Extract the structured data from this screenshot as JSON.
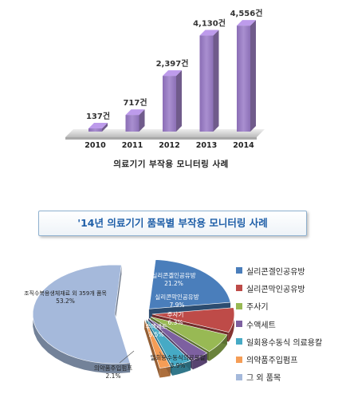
{
  "chart_data": [
    {
      "type": "bar",
      "title": "의료기기 부작용 모니터링 사례",
      "categories": [
        "2010",
        "2011",
        "2012",
        "2013",
        "2014"
      ],
      "values": [
        137,
        717,
        2397,
        4130,
        4556
      ],
      "data_labels": [
        "137건",
        "717건",
        "2,397건",
        "4,130건",
        "4,556건"
      ],
      "ylim": [
        0,
        4800
      ],
      "bar_color": "#9b7fc1",
      "grid": false
    },
    {
      "type": "pie",
      "title": "'14년 의료기기 품목별 부작용 모니터링 사례",
      "legend_position": "right",
      "slices": [
        {
          "name": "실리콘겔인공유방",
          "label": "실리콘겔인공유방",
          "percent": 21.2,
          "percent_label": "21.2%",
          "color": "#4a7ebb"
        },
        {
          "name": "실리콘막인공유방",
          "label": "실리콘막인공유방",
          "percent": 7.9,
          "percent_label": "7.9%",
          "color": "#be4b48"
        },
        {
          "name": "주사기",
          "label": "주사기",
          "percent": 6.3,
          "percent_label": "6.3%",
          "color": "#98b954"
        },
        {
          "name": "수액세트",
          "label": "수액세트",
          "percent": 3.5,
          "percent_label": "3.5%",
          "color": "#7d60a0"
        },
        {
          "name": "일회용수동식 의료용칼",
          "label": "일회용수동식의료용칼",
          "percent": 3.9,
          "percent_label": "3.9%",
          "color": "#46aac5"
        },
        {
          "name": "의약품주입펌프",
          "label": "의약품주입펌프",
          "percent": 2.1,
          "percent_label": "2.1%",
          "color": "#f59d56"
        },
        {
          "name": "그 외 품목",
          "label": "조직수복용생체재료 외 359개 품목",
          "percent": 53.2,
          "percent_label": "53.2%",
          "color": "#a5b9db"
        }
      ]
    }
  ]
}
